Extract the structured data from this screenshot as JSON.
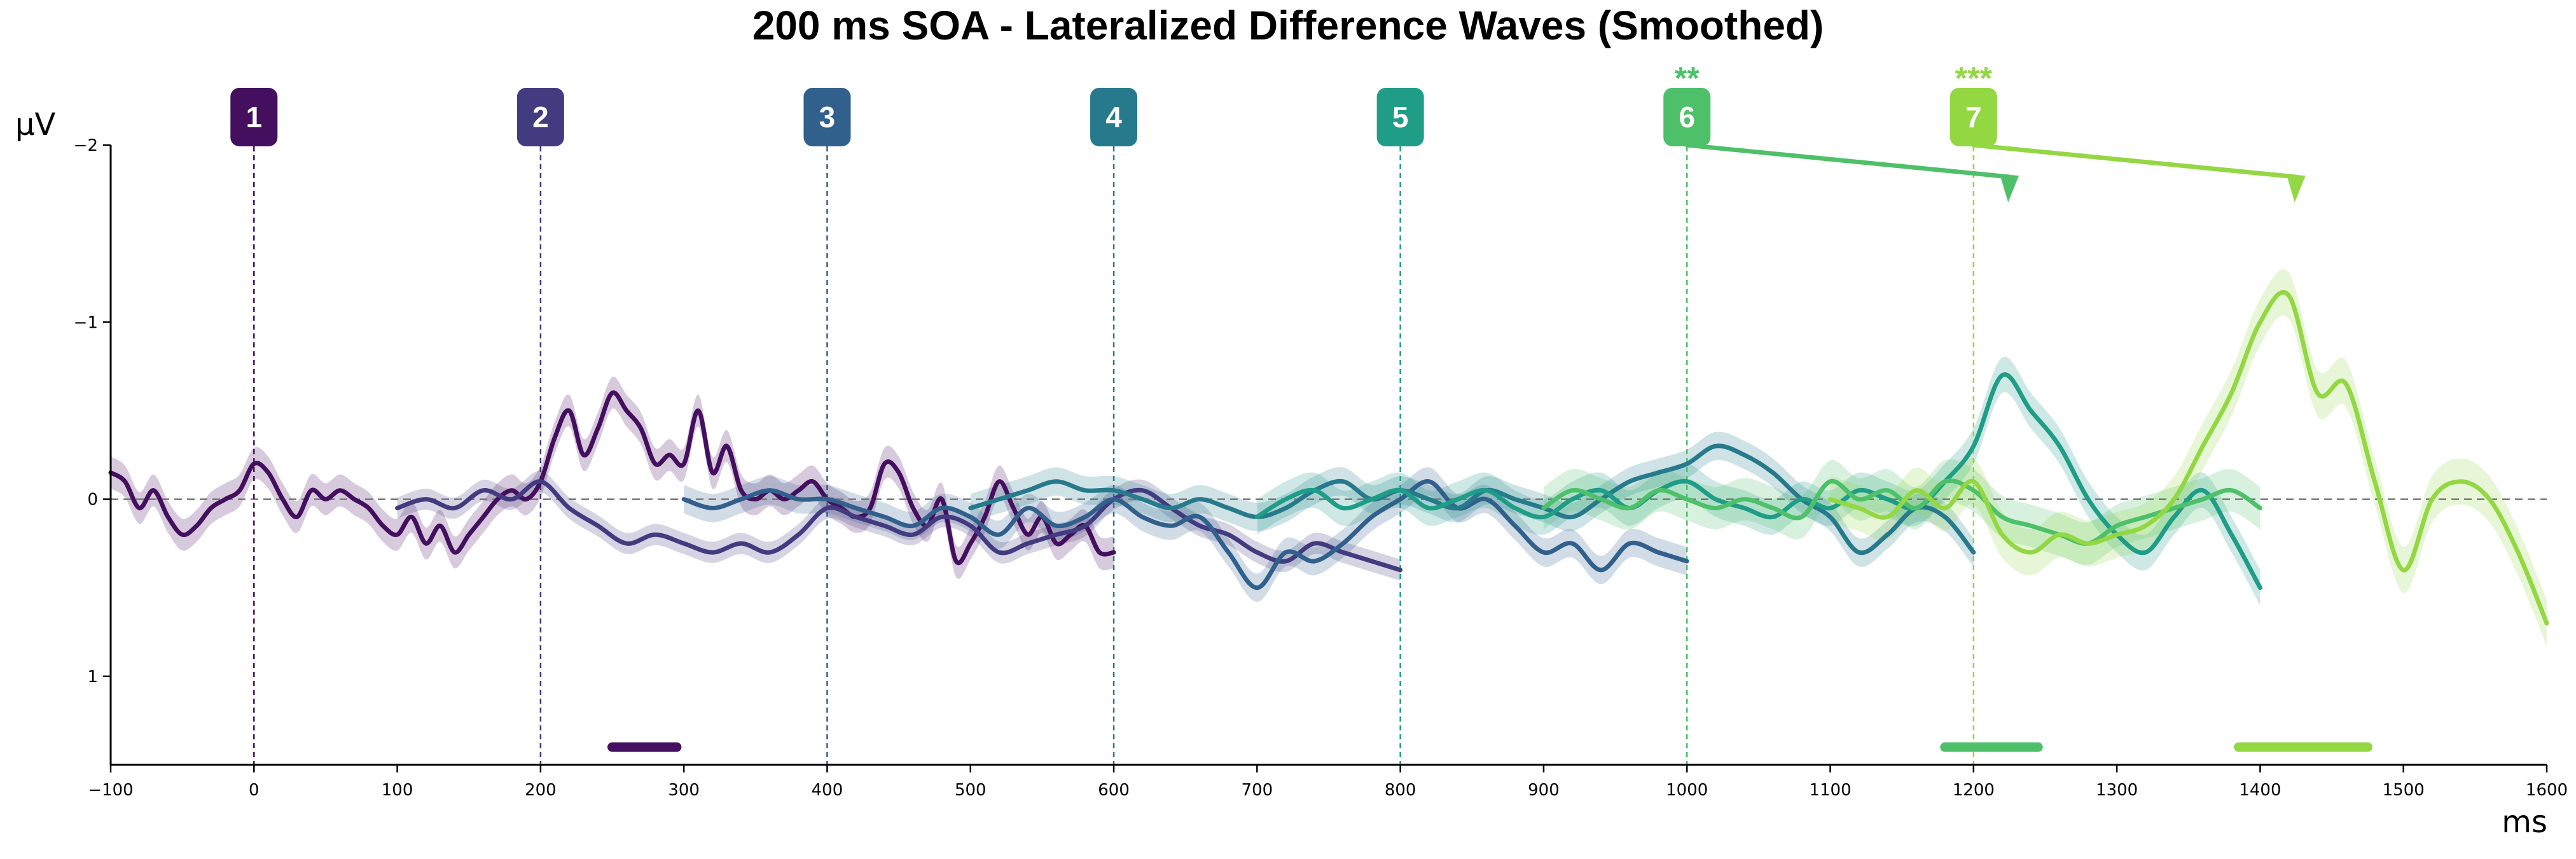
{
  "chart_data": {
    "type": "line",
    "title": "200 ms SOA - Lateralized Difference Waves (Smoothed)",
    "xlabel": "ms",
    "ylabel": "μV",
    "xlim": [
      -100,
      1600
    ],
    "ylim": [
      1.5,
      -2
    ],
    "y_inverted": true,
    "grid": false,
    "xticks": [
      -100,
      0,
      100,
      200,
      300,
      400,
      500,
      600,
      700,
      800,
      900,
      1000,
      1100,
      1200,
      1300,
      1400,
      1500,
      1600
    ],
    "xtick_labels": [
      "−100",
      "0",
      "100",
      "200",
      "300",
      "400",
      "500",
      "600",
      "700",
      "800",
      "900",
      "1000",
      "1100",
      "1200",
      "1300",
      "1400",
      "1500",
      "1600"
    ],
    "yticks": [
      -2,
      -1,
      0,
      1
    ],
    "ytick_labels": [
      "−2",
      "−1",
      "0",
      "1"
    ],
    "zero_line": 0,
    "markers": [
      {
        "label": "1",
        "x": 0,
        "color": "#440f5e",
        "stars": ""
      },
      {
        "label": "2",
        "x": 200,
        "color": "#433b80",
        "stars": ""
      },
      {
        "label": "3",
        "x": 400,
        "color": "#31608c",
        "stars": ""
      },
      {
        "label": "4",
        "x": 600,
        "color": "#267a8c",
        "stars": ""
      },
      {
        "label": "5",
        "x": 800,
        "color": "#1f9d87",
        "stars": ""
      },
      {
        "label": "6",
        "x": 1000,
        "color": "#4ec06a",
        "stars": "**"
      },
      {
        "label": "7",
        "x": 1200,
        "color": "#93d743",
        "stars": "***"
      }
    ],
    "peak_arrows": [
      {
        "from_x": 1000,
        "to_x": 1225,
        "color": "#4ec06a"
      },
      {
        "from_x": 1200,
        "to_x": 1425,
        "color": "#93d743"
      }
    ],
    "significance_bars": [
      {
        "x0": 250,
        "x1": 295,
        "y": 1.4,
        "color": "#440f5e"
      },
      {
        "x0": 1180,
        "x1": 1245,
        "y": 1.4,
        "color": "#4ec06a"
      },
      {
        "x0": 1385,
        "x1": 1475,
        "y": 1.4,
        "color": "#93d743"
      }
    ],
    "series": [
      {
        "color": "#440f5e",
        "band": 0.09,
        "x": [
          -100,
          -90,
          -80,
          -70,
          -60,
          -50,
          -40,
          -30,
          -20,
          -10,
          0,
          10,
          20,
          30,
          40,
          50,
          60,
          70,
          80,
          90,
          100,
          110,
          120,
          130,
          140,
          150,
          160,
          170,
          180,
          190,
          200,
          210,
          220,
          230,
          240,
          250,
          260,
          270,
          280,
          290,
          300,
          310,
          320,
          330,
          340,
          350,
          360,
          370,
          380,
          390,
          400,
          410,
          420,
          430,
          440,
          450,
          460,
          470,
          480,
          490,
          500,
          510,
          520,
          530,
          540,
          550,
          560,
          570,
          580,
          590,
          600
        ],
        "y": [
          -0.15,
          -0.1,
          0.05,
          -0.05,
          0.1,
          0.2,
          0.15,
          0.05,
          0.0,
          -0.05,
          -0.2,
          -0.15,
          0.0,
          0.1,
          -0.05,
          0.0,
          -0.05,
          0.0,
          0.05,
          0.15,
          0.2,
          0.1,
          0.25,
          0.15,
          0.3,
          0.2,
          0.1,
          0.0,
          -0.05,
          0.0,
          -0.1,
          -0.35,
          -0.5,
          -0.25,
          -0.4,
          -0.6,
          -0.5,
          -0.4,
          -0.2,
          -0.25,
          -0.2,
          -0.5,
          -0.15,
          -0.3,
          -0.05,
          0.0,
          -0.05,
          0.0,
          -0.05,
          -0.1,
          0.0,
          0.05,
          0.1,
          0.05,
          -0.2,
          -0.15,
          0.05,
          0.15,
          0.0,
          0.35,
          0.25,
          0.1,
          -0.1,
          0.05,
          0.2,
          0.1,
          0.25,
          0.2,
          0.15,
          0.3,
          0.3
        ]
      },
      {
        "color": "#433b80",
        "band": 0.06,
        "x": [
          100,
          120,
          140,
          160,
          180,
          200,
          220,
          240,
          260,
          280,
          300,
          320,
          340,
          360,
          380,
          400,
          420,
          440,
          460,
          480,
          500,
          520,
          540,
          560,
          580,
          600,
          620,
          640,
          660,
          680,
          700,
          720,
          740,
          760,
          780,
          800
        ],
        "y": [
          0.05,
          0.0,
          0.05,
          -0.05,
          0.0,
          -0.1,
          0.05,
          0.15,
          0.25,
          0.2,
          0.25,
          0.3,
          0.25,
          0.3,
          0.2,
          0.05,
          0.1,
          0.15,
          0.2,
          0.1,
          0.15,
          0.3,
          0.25,
          0.2,
          0.15,
          0.0,
          -0.05,
          0.05,
          0.15,
          0.2,
          0.3,
          0.35,
          0.25,
          0.3,
          0.35,
          0.4
        ]
      },
      {
        "color": "#31608c",
        "band": 0.08,
        "x": [
          300,
          320,
          340,
          360,
          380,
          400,
          420,
          440,
          460,
          480,
          500,
          520,
          540,
          560,
          580,
          600,
          620,
          640,
          660,
          680,
          700,
          720,
          740,
          760,
          780,
          800,
          820,
          840,
          860,
          880,
          900,
          920,
          940,
          960,
          980,
          1000
        ],
        "y": [
          0.0,
          0.05,
          0.0,
          -0.05,
          0.0,
          0.0,
          0.05,
          0.1,
          0.15,
          0.05,
          0.1,
          0.2,
          0.05,
          0.15,
          0.1,
          0.0,
          0.1,
          0.15,
          0.1,
          0.3,
          0.5,
          0.3,
          0.35,
          0.25,
          0.1,
          0.0,
          -0.1,
          0.05,
          0.0,
          0.15,
          0.3,
          0.25,
          0.4,
          0.25,
          0.3,
          0.35
        ]
      },
      {
        "color": "#267a8c",
        "band": 0.08,
        "x": [
          500,
          520,
          540,
          560,
          580,
          600,
          620,
          640,
          660,
          680,
          700,
          720,
          740,
          760,
          780,
          800,
          820,
          840,
          860,
          880,
          900,
          920,
          940,
          960,
          980,
          1000,
          1020,
          1040,
          1060,
          1080,
          1100,
          1120,
          1140,
          1160,
          1180,
          1200
        ],
        "y": [
          0.05,
          0.0,
          -0.05,
          -0.1,
          -0.05,
          -0.05,
          0.0,
          0.05,
          0.0,
          0.05,
          0.1,
          0.05,
          -0.05,
          -0.1,
          0.0,
          -0.05,
          0.0,
          0.05,
          -0.05,
          0.0,
          0.05,
          0.1,
          0.0,
          -0.1,
          -0.15,
          -0.2,
          -0.3,
          -0.25,
          -0.15,
          0.0,
          0.1,
          0.3,
          0.2,
          0.05,
          0.1,
          0.3
        ]
      },
      {
        "color": "#1f9d87",
        "band": 0.1,
        "x": [
          700,
          720,
          740,
          760,
          780,
          800,
          820,
          840,
          860,
          880,
          900,
          920,
          940,
          960,
          980,
          1000,
          1020,
          1040,
          1060,
          1080,
          1100,
          1120,
          1140,
          1160,
          1180,
          1200,
          1220,
          1240,
          1260,
          1280,
          1300,
          1320,
          1340,
          1360,
          1380,
          1400
        ],
        "y": [
          0.1,
          0.0,
          -0.05,
          0.05,
          0.0,
          -0.05,
          0.05,
          0.0,
          -0.05,
          0.05,
          0.1,
          0.0,
          -0.05,
          0.05,
          -0.05,
          -0.1,
          0.0,
          0.05,
          0.1,
          0.0,
          0.05,
          -0.05,
          0.0,
          0.05,
          -0.1,
          -0.3,
          -0.7,
          -0.5,
          -0.3,
          0.0,
          0.2,
          0.3,
          0.1,
          -0.05,
          0.2,
          0.5
        ]
      },
      {
        "color": "#4ec06a",
        "band": 0.12,
        "x": [
          900,
          920,
          940,
          960,
          980,
          1000,
          1020,
          1040,
          1060,
          1080,
          1100,
          1120,
          1140,
          1160,
          1180,
          1200,
          1220,
          1240,
          1260,
          1280,
          1300,
          1320,
          1340,
          1360,
          1380,
          1400
        ],
        "y": [
          0.05,
          -0.05,
          0.0,
          0.05,
          -0.05,
          0.0,
          0.05,
          0.0,
          0.05,
          0.1,
          -0.1,
          0.0,
          -0.05,
          0.05,
          -0.1,
          -0.05,
          0.1,
          0.15,
          0.2,
          0.25,
          0.15,
          0.1,
          0.05,
          0.0,
          -0.05,
          0.05
        ]
      },
      {
        "color": "#93d743",
        "band": 0.13,
        "x": [
          1100,
          1120,
          1140,
          1160,
          1180,
          1200,
          1220,
          1240,
          1260,
          1280,
          1300,
          1320,
          1340,
          1360,
          1380,
          1400,
          1420,
          1440,
          1460,
          1480,
          1500,
          1520,
          1540,
          1560,
          1580,
          1600
        ],
        "y": [
          0.0,
          0.05,
          0.1,
          -0.05,
          0.05,
          -0.1,
          0.2,
          0.3,
          0.2,
          0.25,
          0.2,
          0.15,
          0.0,
          -0.3,
          -0.6,
          -1.0,
          -1.15,
          -0.6,
          -0.65,
          -0.1,
          0.4,
          0.0,
          -0.1,
          0.0,
          0.3,
          0.7
        ]
      }
    ]
  }
}
